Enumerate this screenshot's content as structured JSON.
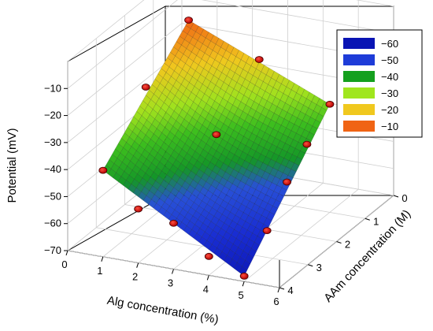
{
  "chart_data": {
    "type": "surface",
    "title": "",
    "xlabel": "Alg concentration (%)",
    "ylabel": "AAm concentration (M)",
    "zlabel": "Potential (mV)",
    "x_ticks": [
      "0",
      "1",
      "2",
      "3",
      "4",
      "5",
      "6"
    ],
    "y_ticks": [
      "0",
      "1",
      "2",
      "3",
      "4"
    ],
    "z_ticks": [
      "−10",
      "−20",
      "−30",
      "−40",
      "−50",
      "−60",
      "−70"
    ],
    "xlim": [
      0,
      6
    ],
    "ylim": [
      0,
      4
    ],
    "zlim": [
      -70,
      0
    ],
    "grid": true,
    "legend_position": "top-right",
    "legend": [
      {
        "label": "−60",
        "color": "#0a14b4"
      },
      {
        "label": "−50",
        "color": "#1e3cd8"
      },
      {
        "label": "−40",
        "color": "#14a01e"
      },
      {
        "label": "−30",
        "color": "#a0e61e"
      },
      {
        "label": "−20",
        "color": "#f0c81e"
      },
      {
        "label": "−10",
        "color": "#f06414"
      }
    ],
    "surface_corners": [
      {
        "x": 1,
        "y": 4,
        "z": -38
      },
      {
        "x": 1,
        "y": 1,
        "z": -8
      },
      {
        "x": 5,
        "y": 1,
        "z": -30
      },
      {
        "x": 5,
        "y": 4,
        "z": -68
      }
    ],
    "points": [
      {
        "x": 1,
        "y": 4,
        "z": -38
      },
      {
        "x": 1,
        "y": 2.5,
        "z": -20
      },
      {
        "x": 1,
        "y": 1,
        "z": -8
      },
      {
        "x": 3,
        "y": 4,
        "z": -53
      },
      {
        "x": 3,
        "y": 2.5,
        "z": -33
      },
      {
        "x": 3,
        "y": 1,
        "z": -18
      },
      {
        "x": 5,
        "y": 4,
        "z": -68
      },
      {
        "x": 5,
        "y": 2.5,
        "z": -46
      },
      {
        "x": 5,
        "y": 1,
        "z": -30
      },
      {
        "x": 2,
        "y": 4,
        "z": -50
      },
      {
        "x": 4,
        "y": 4,
        "z": -63
      },
      {
        "x": 5,
        "y": 3.2,
        "z": -58
      },
      {
        "x": 5,
        "y": 1.8,
        "z": -38
      }
    ]
  }
}
